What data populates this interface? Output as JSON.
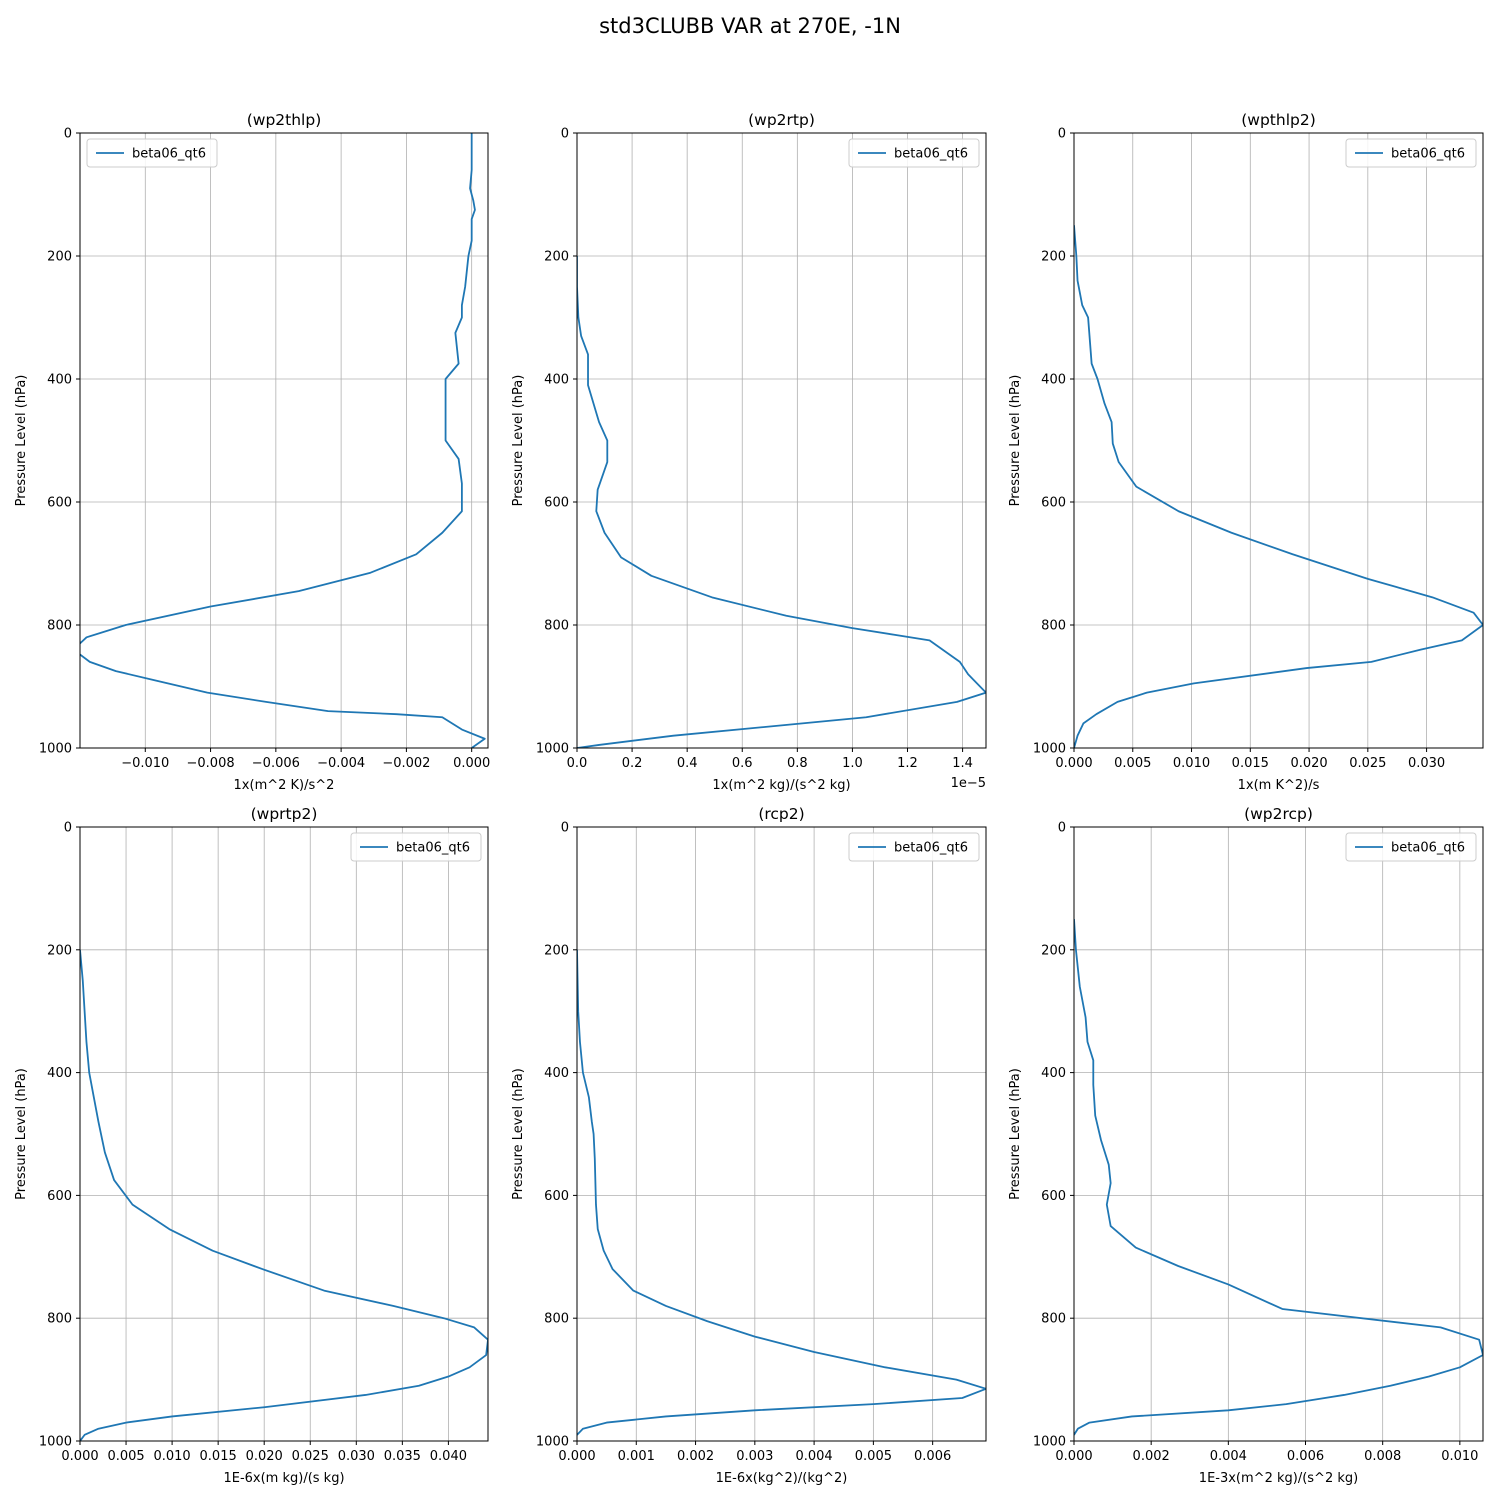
{
  "figure": {
    "title": "std3CLUBB VAR at 270E, -1N"
  },
  "colors": {
    "series": "#1f77b4",
    "grid": "#b0b0b0",
    "axis": "#000000"
  },
  "chart_data": [
    {
      "type": "line",
      "title": "(wp2thlp)",
      "xlabel": "1x(m^2 K)/s^2",
      "ylabel": "Pressure Level (hPa)",
      "xlim": [
        -0.012,
        0.0005
      ],
      "ylim": [
        1000,
        0
      ],
      "xticks": [
        -0.01,
        -0.008,
        -0.006,
        -0.004,
        -0.002,
        0.0
      ],
      "xtick_labels": [
        "−0.010",
        "−0.008",
        "−0.006",
        "−0.004",
        "−0.002",
        "0.000"
      ],
      "yticks": [
        0,
        200,
        400,
        600,
        800,
        1000
      ],
      "ytick_labels": [
        "0",
        "200",
        "400",
        "600",
        "800",
        "1000"
      ],
      "offset_text": "",
      "grid": true,
      "legend_loc": "upper-left",
      "series": [
        {
          "name": "beta06_qt6",
          "x": [
            0.0,
            0.0,
            0.0,
            -5e-05,
            5e-05,
            0.0001,
            0.0,
            0.0,
            -0.0001,
            -0.0002,
            -0.0003,
            -0.0003,
            -0.0005,
            -0.0004,
            -0.0008,
            -0.0008,
            -0.0004,
            -0.0003,
            -0.0003,
            -0.0009,
            -0.0017,
            -0.0031,
            -0.0053,
            -0.008,
            -0.0106,
            -0.0118,
            -0.0122,
            -0.0117,
            -0.0109,
            -0.0097,
            -0.0081,
            -0.0063,
            -0.0044,
            -0.0023,
            -0.0009,
            -0.0003,
            0.0004,
            0.0
          ],
          "y": [
            0,
            30,
            60,
            90,
            110,
            125,
            140,
            175,
            200,
            250,
            280,
            300,
            325,
            375,
            400,
            500,
            530,
            570,
            615,
            650,
            685,
            715,
            745,
            770,
            800,
            820,
            840,
            860,
            875,
            890,
            910,
            925,
            940,
            945,
            950,
            970,
            985,
            1000
          ]
        }
      ]
    },
    {
      "type": "line",
      "title": "(wp2rtp)",
      "xlabel": "1x(m^2 kg)/(s^2 kg)",
      "ylabel": "Pressure Level (hPa)",
      "xlim": [
        0,
        1.485
      ],
      "ylim": [
        1000,
        0
      ],
      "xticks": [
        0.0,
        0.2,
        0.4,
        0.6,
        0.8,
        1.0,
        1.2,
        1.4
      ],
      "xtick_labels": [
        "0.0",
        "0.2",
        "0.4",
        "0.6",
        "0.8",
        "1.0",
        "1.2",
        "1.4"
      ],
      "yticks": [
        0,
        200,
        400,
        600,
        800,
        1000
      ],
      "ytick_labels": [
        "0",
        "200",
        "400",
        "600",
        "800",
        "1000"
      ],
      "offset_text": "1e−5",
      "grid": true,
      "legend_loc": "upper-right",
      "series": [
        {
          "name": "beta06_qt6",
          "x": [
            0.0,
            0.0,
            0.005,
            0.015,
            0.04,
            0.04,
            0.08,
            0.11,
            0.11,
            0.075,
            0.07,
            0.1,
            0.16,
            0.27,
            0.49,
            0.76,
            1.0,
            1.28,
            1.39,
            1.42,
            1.485,
            1.38,
            1.05,
            0.7,
            0.35,
            0.08,
            0.0
          ],
          "y": [
            200,
            250,
            300,
            330,
            360,
            410,
            470,
            500,
            535,
            580,
            615,
            650,
            690,
            720,
            755,
            785,
            805,
            825,
            860,
            880,
            910,
            925,
            950,
            965,
            980,
            995,
            1000
          ]
        }
      ]
    },
    {
      "type": "line",
      "title": "(wpthlp2)",
      "xlabel": "1x(m K^2)/s",
      "ylabel": "Pressure Level (hPa)",
      "xlim": [
        0,
        0.0348
      ],
      "ylim": [
        1000,
        0
      ],
      "xticks": [
        0.0,
        0.005,
        0.01,
        0.015,
        0.02,
        0.025,
        0.03
      ],
      "xtick_labels": [
        "0.000",
        "0.005",
        "0.010",
        "0.015",
        "0.020",
        "0.025",
        "0.030"
      ],
      "yticks": [
        0,
        200,
        400,
        600,
        800,
        1000
      ],
      "ytick_labels": [
        "0",
        "200",
        "400",
        "600",
        "800",
        "1000"
      ],
      "offset_text": "",
      "grid": true,
      "legend_loc": "upper-right",
      "series": [
        {
          "name": "beta06_qt6",
          "x": [
            0.0,
            0.0002,
            0.0003,
            0.0007,
            0.0012,
            0.0013,
            0.0015,
            0.002,
            0.0026,
            0.0032,
            0.0033,
            0.0038,
            0.0053,
            0.0089,
            0.0134,
            0.0186,
            0.025,
            0.0305,
            0.034,
            0.0348,
            0.033,
            0.0295,
            0.0253,
            0.0198,
            0.0102,
            0.0062,
            0.0037,
            0.0019,
            0.0008,
            0.0003,
            0.0
          ],
          "y": [
            150,
            200,
            240,
            280,
            300,
            325,
            375,
            400,
            440,
            470,
            505,
            535,
            575,
            615,
            650,
            685,
            725,
            755,
            780,
            800,
            825,
            840,
            860,
            870,
            895,
            910,
            925,
            945,
            960,
            980,
            1000
          ]
        }
      ]
    },
    {
      "type": "line",
      "title": "(wprtp2)",
      "xlabel": "1E-6x(m kg)/(s kg)",
      "ylabel": "Pressure Level (hPa)",
      "xlim": [
        0,
        0.0443
      ],
      "ylim": [
        1000,
        0
      ],
      "xticks": [
        0.0,
        0.005,
        0.01,
        0.015,
        0.02,
        0.025,
        0.03,
        0.035,
        0.04
      ],
      "xtick_labels": [
        "0.000",
        "0.005",
        "0.010",
        "0.015",
        "0.020",
        "0.025",
        "0.030",
        "0.035",
        "0.040"
      ],
      "yticks": [
        0,
        200,
        400,
        600,
        800,
        1000
      ],
      "ytick_labels": [
        "0",
        "200",
        "400",
        "600",
        "800",
        "1000"
      ],
      "offset_text": "",
      "grid": true,
      "legend_loc": "upper-right",
      "series": [
        {
          "name": "beta06_qt6",
          "x": [
            0.0,
            0.0003,
            0.0005,
            0.0007,
            0.001,
            0.0015,
            0.002,
            0.0027,
            0.0037,
            0.0057,
            0.0097,
            0.0144,
            0.0198,
            0.0265,
            0.034,
            0.0395,
            0.0428,
            0.0443,
            0.0441,
            0.0423,
            0.04,
            0.0368,
            0.031,
            0.02,
            0.01,
            0.005,
            0.002,
            0.0005,
            0.0
          ],
          "y": [
            200,
            250,
            300,
            350,
            400,
            440,
            480,
            530,
            575,
            615,
            655,
            690,
            720,
            755,
            780,
            800,
            815,
            835,
            860,
            880,
            895,
            910,
            925,
            945,
            960,
            970,
            980,
            990,
            1000
          ]
        }
      ]
    },
    {
      "type": "line",
      "title": "(rcp2)",
      "xlabel": "1E-6x(kg^2)/(kg^2)",
      "ylabel": "Pressure Level (hPa)",
      "xlim": [
        0,
        0.0069
      ],
      "ylim": [
        1000,
        0
      ],
      "xticks": [
        0.0,
        0.001,
        0.002,
        0.003,
        0.004,
        0.005,
        0.006
      ],
      "xtick_labels": [
        "0.000",
        "0.001",
        "0.002",
        "0.003",
        "0.004",
        "0.005",
        "0.006"
      ],
      "yticks": [
        0,
        200,
        400,
        600,
        800,
        1000
      ],
      "ytick_labels": [
        "0",
        "200",
        "400",
        "600",
        "800",
        "1000"
      ],
      "offset_text": "",
      "grid": true,
      "legend_loc": "upper-right",
      "series": [
        {
          "name": "beta06_qt6",
          "x": [
            0.0,
            2e-05,
            5e-05,
            0.0001,
            0.0002,
            0.00025,
            0.00028,
            0.0003,
            0.00032,
            0.00035,
            0.00045,
            0.0006,
            0.00095,
            0.0015,
            0.0022,
            0.003,
            0.004,
            0.0052,
            0.0064,
            0.0069,
            0.0065,
            0.005,
            0.003,
            0.0015,
            0.0005,
            0.0001,
            0.0
          ],
          "y": [
            200,
            300,
            350,
            400,
            440,
            480,
            500,
            540,
            615,
            655,
            690,
            720,
            755,
            780,
            805,
            830,
            855,
            880,
            900,
            915,
            930,
            940,
            950,
            960,
            970,
            980,
            990
          ]
        }
      ]
    },
    {
      "type": "line",
      "title": "(wp2rcp)",
      "xlabel": "1E-3x(m^2 kg)/(s^2 kg)",
      "ylabel": "Pressure Level (hPa)",
      "xlim": [
        0,
        0.0106
      ],
      "ylim": [
        1000,
        0
      ],
      "xticks": [
        0.0,
        0.002,
        0.004,
        0.006,
        0.008,
        0.01
      ],
      "xtick_labels": [
        "0.000",
        "0.002",
        "0.004",
        "0.006",
        "0.008",
        "0.010"
      ],
      "yticks": [
        0,
        200,
        400,
        600,
        800,
        1000
      ],
      "ytick_labels": [
        "0",
        "200",
        "400",
        "600",
        "800",
        "1000"
      ],
      "offset_text": "",
      "grid": true,
      "legend_loc": "upper-right",
      "series": [
        {
          "name": "beta06_qt6",
          "x": [
            0.0,
            5e-05,
            0.00015,
            0.0003,
            0.00035,
            0.0005,
            0.0005,
            0.00055,
            0.0007,
            0.0009,
            0.00095,
            0.00085,
            0.00095,
            0.0016,
            0.0027,
            0.004,
            0.0054,
            0.0095,
            0.0105,
            0.0106,
            0.01,
            0.0092,
            0.0082,
            0.007,
            0.0055,
            0.004,
            0.0015,
            0.0004,
            0.0001,
            0.0
          ],
          "y": [
            150,
            200,
            260,
            310,
            350,
            380,
            420,
            470,
            510,
            550,
            580,
            615,
            650,
            685,
            715,
            745,
            785,
            815,
            835,
            860,
            880,
            895,
            910,
            925,
            940,
            950,
            960,
            970,
            980,
            990
          ]
        }
      ]
    }
  ]
}
